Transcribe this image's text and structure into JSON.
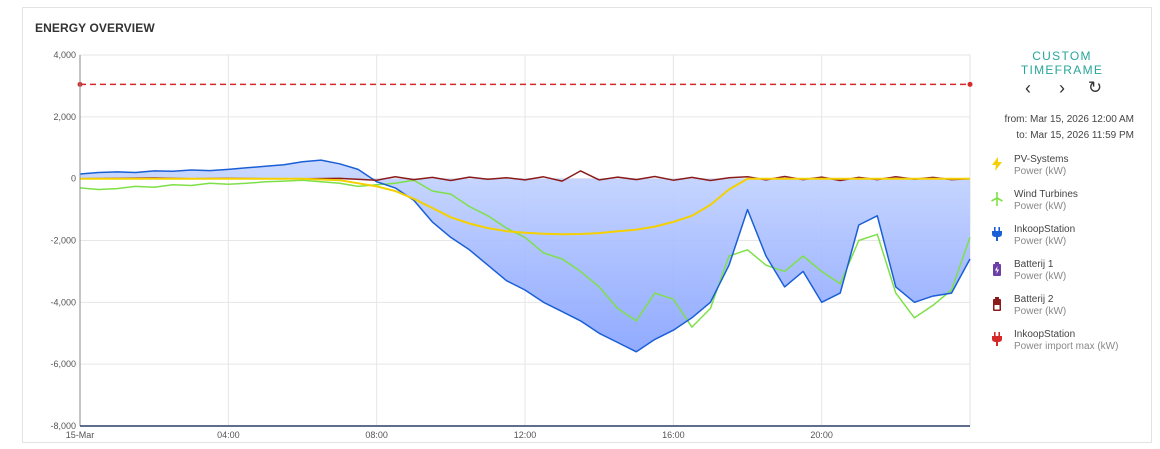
{
  "title": "ENERGY OVERVIEW",
  "controls": {
    "custom_label": "CUSTOM",
    "timeframe_label": "TIMEFRAME",
    "prev_label": "‹",
    "next_label": "›",
    "reset_label": "↻",
    "from_text": "from: Mar 15, 2026 12:00 AM",
    "to_text": "to: Mar 15, 2026 11:59 PM"
  },
  "legend": [
    {
      "name": "PV-Systems",
      "unit": "Power (kW)",
      "color": "#f4d000",
      "icon": "lightning-icon"
    },
    {
      "name": "Wind Turbines",
      "unit": "Power (kW)",
      "color": "#7ee048",
      "icon": "wind-turbine-icon"
    },
    {
      "name": "InkoopStation",
      "unit": "Power (kW)",
      "color": "#1a5fd6",
      "icon": "plug-icon"
    },
    {
      "name": "Batterij 1",
      "unit": "Power (kW)",
      "color": "#6c3fa8",
      "icon": "battery-icon"
    },
    {
      "name": "Batterij 2",
      "unit": "Power (kW)",
      "color": "#8b1a1a",
      "icon": "battery-icon"
    },
    {
      "name": "InkoopStation",
      "unit": "Power import max (kW)",
      "color": "#d62828",
      "icon": "plug-icon"
    }
  ],
  "chart_data": {
    "type": "line",
    "ylim": [
      -8000,
      4000
    ],
    "yticks": [
      "4,000",
      "2,000",
      "0",
      "-2,000",
      "-4,000",
      "-6,000",
      "-8,000"
    ],
    "yticks_values": [
      4000,
      2000,
      0,
      -2000,
      -4000,
      -6000,
      -8000
    ],
    "xticks": [
      "15-Mar",
      "04:00",
      "08:00",
      "12:00",
      "16:00",
      "20:00"
    ],
    "xticks_hours": [
      0,
      4,
      8,
      12,
      16,
      20
    ],
    "xlim_hours": [
      0,
      24
    ],
    "grid": true,
    "series": [
      {
        "name": "InkoopStation",
        "unit": "Power (kW)",
        "color": "#1a5fd6",
        "x": [
          0,
          0.5,
          1,
          1.5,
          2,
          2.5,
          3,
          3.5,
          4,
          4.5,
          5,
          5.5,
          6,
          6.5,
          7,
          7.5,
          8,
          8.5,
          9,
          9.5,
          10,
          10.5,
          11,
          11.5,
          12,
          12.5,
          13,
          13.5,
          14,
          14.5,
          15,
          15.5,
          16,
          16.5,
          17,
          17.5,
          18,
          18.5,
          19,
          19.5,
          20,
          20.5,
          21,
          21.5,
          22,
          22.5,
          23,
          23.5,
          24
        ],
        "y": [
          150,
          200,
          220,
          200,
          250,
          240,
          280,
          260,
          300,
          350,
          400,
          450,
          550,
          600,
          480,
          300,
          -100,
          -300,
          -700,
          -1400,
          -1900,
          -2300,
          -2800,
          -3300,
          -3600,
          -4000,
          -4300,
          -4600,
          -5000,
          -5300,
          -5600,
          -5200,
          -4900,
          -4500,
          -4000,
          -2800,
          -1000,
          -2500,
          -3500,
          -3000,
          -4000,
          -3700,
          -1500,
          -1200,
          -3500,
          -4000,
          -3800,
          -3700,
          -2600
        ]
      },
      {
        "name": "Wind Turbines",
        "unit": "Power (kW)",
        "color": "#7ee048",
        "x": [
          0,
          0.5,
          1,
          1.5,
          2,
          2.5,
          3,
          3.5,
          4,
          4.5,
          5,
          5.5,
          6,
          6.5,
          7,
          7.5,
          8,
          8.5,
          9,
          9.5,
          10,
          10.5,
          11,
          11.5,
          12,
          12.5,
          13,
          13.5,
          14,
          14.5,
          15,
          15.5,
          16,
          16.5,
          17,
          17.5,
          18,
          18.5,
          19,
          19.5,
          20,
          20.5,
          21,
          21.5,
          22,
          22.5,
          23,
          23.5,
          24
        ],
        "y": [
          -300,
          -350,
          -320,
          -250,
          -280,
          -200,
          -220,
          -150,
          -180,
          -150,
          -100,
          -80,
          -50,
          -100,
          -150,
          -250,
          -200,
          -150,
          -50,
          -400,
          -500,
          -900,
          -1200,
          -1600,
          -1900,
          -2400,
          -2600,
          -3000,
          -3500,
          -4200,
          -4600,
          -3700,
          -3900,
          -4800,
          -4200,
          -2500,
          -2300,
          -2800,
          -3000,
          -2500,
          -3000,
          -3400,
          -2000,
          -1800,
          -3700,
          -4500,
          -4100,
          -3600,
          -1900
        ]
      },
      {
        "name": "PV-Systems",
        "unit": "Power (kW)",
        "color": "#f4d000",
        "x": [
          0,
          1,
          2,
          3,
          4,
          5,
          6,
          7,
          8,
          8.5,
          9,
          9.5,
          10,
          10.5,
          11,
          11.5,
          12,
          12.5,
          13,
          13.5,
          14,
          14.5,
          15,
          15.5,
          16,
          16.5,
          17,
          17.5,
          18,
          19,
          20,
          21,
          22,
          23,
          24
        ],
        "y": [
          0,
          0,
          0,
          0,
          0,
          0,
          0,
          -50,
          -250,
          -400,
          -650,
          -950,
          -1250,
          -1450,
          -1600,
          -1700,
          -1750,
          -1780,
          -1800,
          -1790,
          -1760,
          -1700,
          -1650,
          -1550,
          -1400,
          -1200,
          -850,
          -350,
          0,
          0,
          0,
          0,
          0,
          0,
          0
        ]
      },
      {
        "name": "Batterij 2",
        "unit": "Power (kW)",
        "color": "#8b1a1a",
        "x": [
          0,
          1,
          2,
          3,
          4,
          5,
          6,
          7,
          8,
          8.5,
          9,
          9.5,
          10,
          10.5,
          11,
          11.5,
          12,
          12.5,
          13,
          13.5,
          14,
          14.5,
          15,
          15.5,
          16,
          16.5,
          17,
          17.5,
          18,
          18.5,
          19,
          19.5,
          20,
          20.5,
          21,
          21.5,
          22,
          22.5,
          23,
          23.5,
          24
        ],
        "y": [
          0,
          10,
          20,
          0,
          10,
          0,
          0,
          10,
          -50,
          60,
          -30,
          40,
          -60,
          50,
          -20,
          30,
          -40,
          60,
          -80,
          250,
          -40,
          50,
          -30,
          70,
          -50,
          40,
          -60,
          30,
          60,
          -40,
          70,
          -30,
          50,
          -60,
          40,
          -30,
          60,
          -20,
          40,
          -30,
          0
        ]
      },
      {
        "name": "InkoopStation",
        "unit": "Power import max (kW)",
        "color": "#d62828",
        "x": [
          0,
          24
        ],
        "y": [
          3050,
          3050
        ]
      }
    ]
  }
}
